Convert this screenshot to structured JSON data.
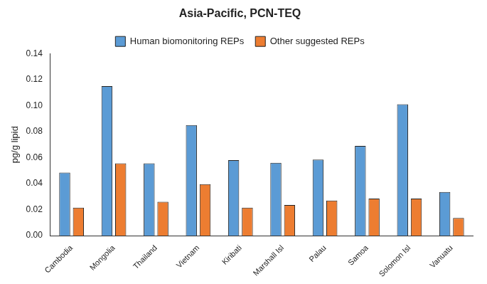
{
  "chart_data": {
    "type": "bar",
    "title": "Asia-Pacific, PCN-TEQ",
    "y_label": "pg/g lipid",
    "categories": [
      "Cambodia",
      "Mongolia",
      "Thailand",
      "Vietnam",
      "Kiribati",
      "Marshall Isl",
      "Palau",
      "Samoa",
      "Solomon Isl",
      "Vanuatu"
    ],
    "series": [
      {
        "name": "Human biomonitoring REPs",
        "color": "#5B9BD5",
        "values": [
          0.0485,
          0.115,
          0.0555,
          0.085,
          0.058,
          0.056,
          0.0585,
          0.069,
          0.101,
          0.0335
        ]
      },
      {
        "name": "Other suggested REPs",
        "color": "#ED7D31",
        "values": [
          0.0215,
          0.0555,
          0.026,
          0.0395,
          0.0215,
          0.0235,
          0.027,
          0.0285,
          0.0285,
          0.0135
        ]
      }
    ],
    "ylim": [
      0,
      0.14
    ],
    "yticks": [
      {
        "value": 0,
        "label": "0.00"
      },
      0.02,
      0.04,
      0.06,
      0.08,
      {
        "value": 0.1,
        "label": "0.10"
      },
      0.12,
      0.14
    ],
    "grid": false,
    "legend": "top"
  }
}
